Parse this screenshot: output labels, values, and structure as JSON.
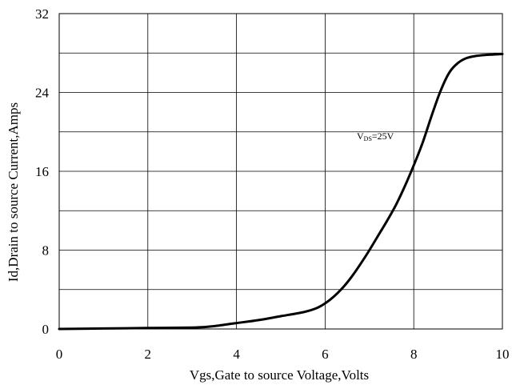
{
  "chart_data": {
    "type": "line",
    "title": "",
    "xlabel": "Vgs,Gate to source Voltage,Volts",
    "ylabel": "Id,Drain to source Current,Amps",
    "xlim": [
      0,
      10
    ],
    "ylim": [
      0,
      32
    ],
    "grid": true,
    "x_ticks": [
      "0",
      "2",
      "4",
      "6",
      "8",
      "10"
    ],
    "y_ticks": [
      "0",
      "8",
      "16",
      "24",
      "32"
    ],
    "annotation": {
      "main": "V",
      "sub": "DS",
      "rest": "=25V"
    },
    "series": [
      {
        "x": [
          0,
          1,
          2,
          3,
          3.3,
          3.6,
          4.0,
          4.5,
          5.0,
          5.5,
          5.8,
          6.0,
          6.2,
          6.4,
          6.6,
          6.8,
          7.0,
          7.2,
          7.4,
          7.6,
          7.8,
          8.0,
          8.2,
          8.4,
          8.6,
          8.8,
          9.0,
          9.2,
          9.4,
          9.6,
          9.8,
          10.0
        ],
        "y": [
          0,
          0.05,
          0.1,
          0.15,
          0.2,
          0.35,
          0.6,
          0.9,
          1.3,
          1.7,
          2.1,
          2.6,
          3.3,
          4.2,
          5.3,
          6.6,
          8.0,
          9.5,
          11.0,
          12.6,
          14.5,
          16.6,
          18.9,
          21.6,
          24.1,
          26.0,
          27.0,
          27.5,
          27.7,
          27.8,
          27.85,
          27.9
        ]
      }
    ]
  }
}
